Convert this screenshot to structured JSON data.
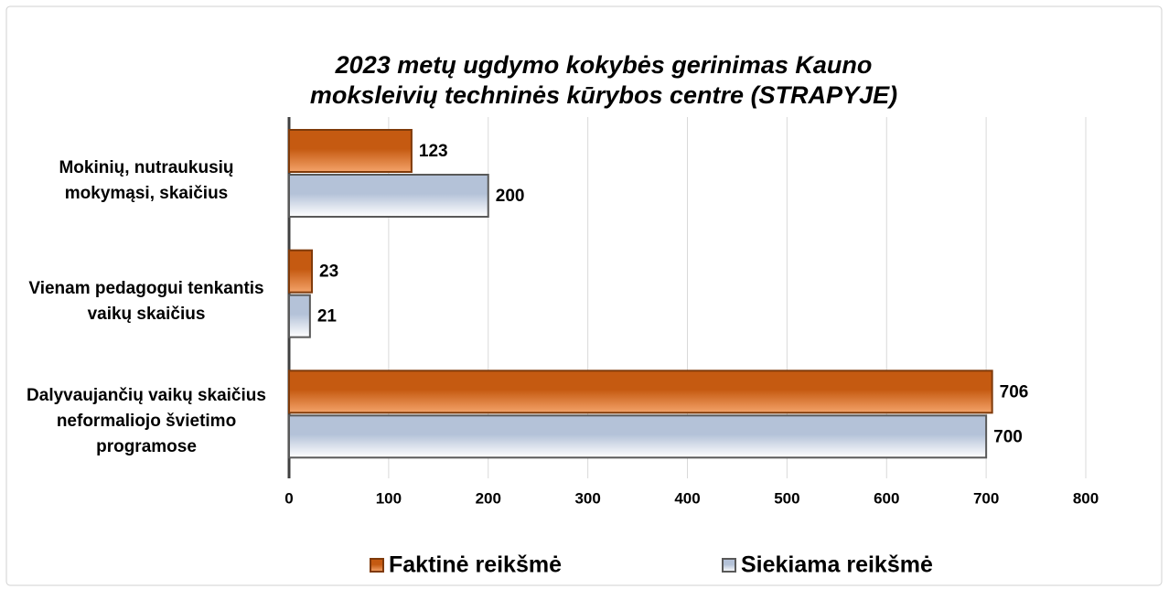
{
  "chart_data": {
    "type": "hbar",
    "title": "2023 metų ugdymo kokybės gerinimas Kauno moksleivių techninės kūrybos centre (STRAPYJE)",
    "categories": [
      "Mokinių, nutraukusių mokymąsi, skaičius",
      "Vienam pedagogui tenkantis vaikų skaičius",
      "Dalyvaujančių vaikų skaičius neformaliojo švietimo programose"
    ],
    "series": [
      {
        "name": "Faktinė reikšmė",
        "color": "#c55a11",
        "values": [
          123,
          23,
          706
        ]
      },
      {
        "name": "Siekiama reikšmė",
        "color": "#b4c2d8",
        "values": [
          200,
          21,
          700
        ]
      }
    ],
    "xlim": [
      0,
      800
    ],
    "xticks": [
      0,
      100,
      200,
      300,
      400,
      500,
      600,
      700,
      800
    ],
    "grid": true,
    "legend": "bottom"
  }
}
